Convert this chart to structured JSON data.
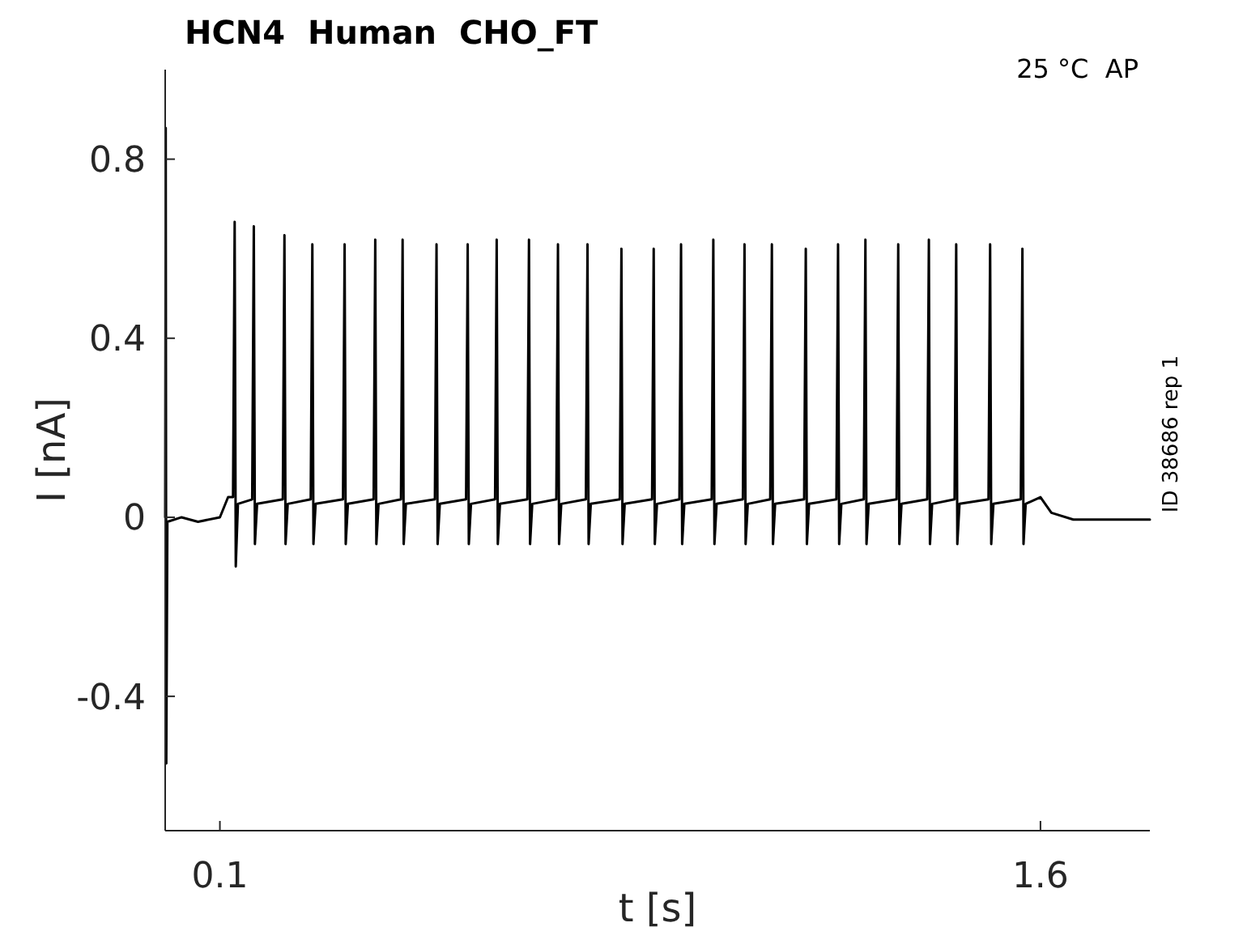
{
  "chart_data": {
    "type": "line",
    "title": "HCN4  Human  CHO_FT",
    "xlabel": "t [s]",
    "ylabel": "I [nA]",
    "annotations": [
      "25 °C  AP",
      "ID 38686 rep 1"
    ],
    "xlim": [
      0,
      1.8
    ],
    "ylim": [
      -0.7,
      1.0
    ],
    "xticks": [
      0.1,
      1.6
    ],
    "yticks": [
      -0.4,
      0,
      0.4,
      0.8
    ],
    "grid": false,
    "marker": "none",
    "line_style": "solid",
    "series": [
      {
        "color": "#000000",
        "x": [
          0,
          0.001,
          0.002,
          0.004,
          0.03,
          0.06,
          0.1,
          0.115,
          0.124,
          0.127,
          0.129,
          0.133,
          0.159,
          0.162,
          0.164,
          0.168,
          0.215,
          0.218,
          0.22,
          0.224,
          0.266,
          0.269,
          0.271,
          0.275,
          0.325,
          0.328,
          0.33,
          0.334,
          0.381,
          0.384,
          0.386,
          0.39,
          0.431,
          0.434,
          0.436,
          0.44,
          0.493,
          0.496,
          0.498,
          0.502,
          0.55,
          0.553,
          0.555,
          0.559,
          0.603,
          0.606,
          0.608,
          0.612,
          0.662,
          0.665,
          0.667,
          0.671,
          0.715,
          0.718,
          0.72,
          0.724,
          0.769,
          0.772,
          0.774,
          0.778,
          0.831,
          0.834,
          0.836,
          0.84,
          0.89,
          0.893,
          0.895,
          0.899,
          0.94,
          0.943,
          0.945,
          0.949,
          0.999,
          1.002,
          1.004,
          1.008,
          1.056,
          1.059,
          1.061,
          1.065,
          1.106,
          1.109,
          1.111,
          1.115,
          1.168,
          1.171,
          1.173,
          1.177,
          1.227,
          1.23,
          1.232,
          1.236,
          1.277,
          1.28,
          1.282,
          1.286,
          1.337,
          1.34,
          1.342,
          1.346,
          1.393,
          1.396,
          1.398,
          1.402,
          1.443,
          1.446,
          1.448,
          1.452,
          1.505,
          1.508,
          1.51,
          1.514,
          1.564,
          1.567,
          1.569,
          1.573,
          1.6,
          1.62,
          1.66,
          1.72,
          1.8
        ],
        "values": [
          0,
          0.87,
          -0.55,
          -0.01,
          0,
          -0.01,
          0,
          0.045,
          0.045,
          0.66,
          -0.11,
          0.03,
          0.04,
          0.65,
          -0.06,
          0.03,
          0.04,
          0.63,
          -0.06,
          0.03,
          0.04,
          0.61,
          -0.06,
          0.03,
          0.04,
          0.61,
          -0.06,
          0.03,
          0.04,
          0.62,
          -0.06,
          0.03,
          0.04,
          0.62,
          -0.06,
          0.03,
          0.04,
          0.61,
          -0.06,
          0.03,
          0.04,
          0.61,
          -0.06,
          0.03,
          0.04,
          0.62,
          -0.06,
          0.03,
          0.04,
          0.62,
          -0.06,
          0.03,
          0.04,
          0.61,
          -0.06,
          0.03,
          0.04,
          0.61,
          -0.06,
          0.03,
          0.04,
          0.6,
          -0.06,
          0.03,
          0.04,
          0.6,
          -0.06,
          0.03,
          0.04,
          0.61,
          -0.06,
          0.03,
          0.04,
          0.62,
          -0.06,
          0.03,
          0.04,
          0.61,
          -0.06,
          0.03,
          0.04,
          0.61,
          -0.06,
          0.03,
          0.04,
          0.6,
          -0.06,
          0.03,
          0.04,
          0.61,
          -0.06,
          0.03,
          0.04,
          0.62,
          -0.06,
          0.03,
          0.04,
          0.61,
          -0.06,
          0.03,
          0.04,
          0.62,
          -0.06,
          0.03,
          0.04,
          0.61,
          -0.06,
          0.03,
          0.04,
          0.61,
          -0.06,
          0.03,
          0.04,
          0.6,
          -0.06,
          0.03,
          0.045,
          0.01,
          -0.005,
          -0.005,
          -0.005
        ]
      }
    ]
  }
}
